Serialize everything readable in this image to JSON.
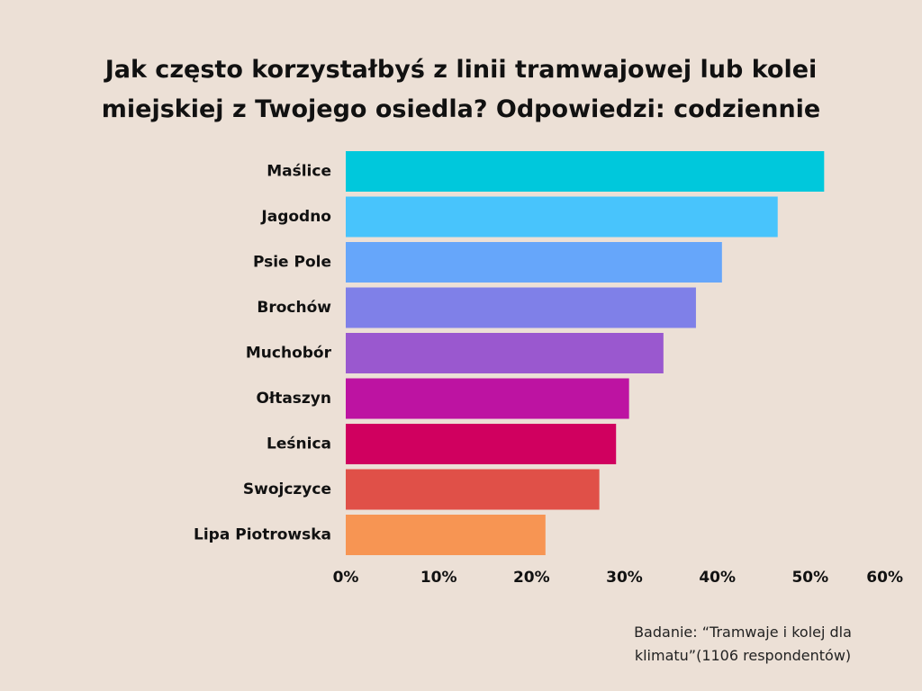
{
  "chart_data": {
    "type": "bar",
    "orientation": "horizontal",
    "title_lines": [
      "Jak często korzystałbyś z linii tramwajowej lub kolei",
      "miejskiej z Twojego osiedla? Odpowiedzi: codziennie"
    ],
    "categories": [
      "Maślice",
      "Jagodno",
      "Psie Pole",
      "Brochów",
      "Muchobór",
      "Ołtaszyn",
      "Leśnica",
      "Swojczyce",
      "Lipa Piotrowska"
    ],
    "values": [
      51.5,
      46.5,
      40.5,
      37.7,
      34.2,
      30.5,
      29.1,
      27.3,
      21.5
    ],
    "bar_colors": [
      "#00c8dc",
      "#48c4fc",
      "#66a6fa",
      "#7f80e8",
      "#9a58cf",
      "#bd13a2",
      "#d0005f",
      "#e05048",
      "#f79553"
    ],
    "xlim": [
      0,
      60
    ],
    "x_ticks": [
      "0%",
      "10%",
      "20%",
      "30%",
      "40%",
      "50%",
      "60%"
    ],
    "xlabel": "",
    "ylabel": "",
    "grid": false,
    "legend": "none"
  },
  "source_note_lines": [
    "Badanie: “Tramwaje i kolej dla",
    "klimatu”(1106 respondentów)"
  ],
  "colors": {
    "background": "#ece0d6",
    "text": "#111111"
  }
}
